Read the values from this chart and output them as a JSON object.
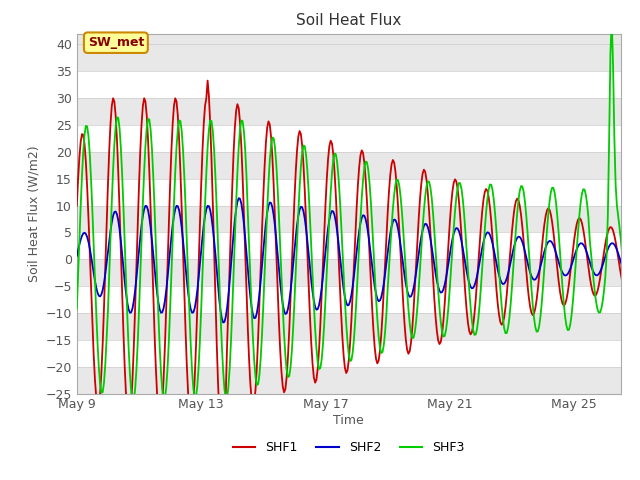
{
  "title": "Soil Heat Flux",
  "xlabel": "Time",
  "ylabel": "Soil Heat Flux (W/m2)",
  "ylim": [
    -25,
    42
  ],
  "yticks": [
    -25,
    -20,
    -15,
    -10,
    -5,
    0,
    5,
    10,
    15,
    20,
    25,
    30,
    35,
    40
  ],
  "xtick_labels": [
    "May 9",
    "May 13",
    "May 17",
    "May 21",
    "May 25"
  ],
  "xtick_days": [
    0,
    4,
    8,
    12,
    16
  ],
  "xlim": [
    0,
    17.5
  ],
  "shf1_color": "#cc0000",
  "shf2_color": "#0000cc",
  "shf3_color": "#00cc00",
  "bg_color": "#ffffff",
  "plot_bg_light": "#ffffff",
  "plot_bg_dark": "#e8e8e8",
  "annotation_text": "SW_met",
  "annotation_bg": "#ffff99",
  "annotation_border": "#cc8800",
  "legend_labels": [
    "SHF1",
    "SHF2",
    "SHF3"
  ],
  "band_edges": [
    -25,
    -20,
    -15,
    -10,
    -5,
    0,
    5,
    10,
    15,
    20,
    25,
    30,
    35,
    40
  ]
}
